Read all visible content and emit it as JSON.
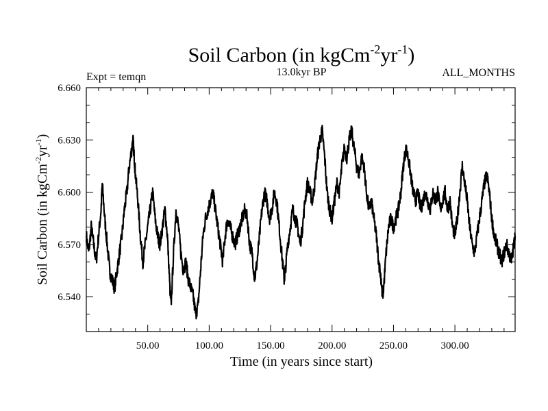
{
  "chart_data": {
    "type": "line",
    "title": "Soil Carbon (in kgCm",
    "title_sup1": "-2",
    "title_mid": "yr",
    "title_sup2": "-1",
    "title_end": ")",
    "subtitle_left": "Expt = temqn",
    "subtitle_center": "13.0kyr BP",
    "subtitle_right": "ALL_MONTHS",
    "xlabel": "Time (in years since start)",
    "ylabel": "Soil Carbon (in kgCm",
    "ylabel_sup1": "-2",
    "ylabel_mid": "yr",
    "ylabel_sup2": "-1",
    "ylabel_end": ")",
    "xlim": [
      0,
      349
    ],
    "ylim": [
      6.52,
      6.66
    ],
    "x_ticks": [
      50,
      100,
      150,
      200,
      250,
      300
    ],
    "x_tick_labels": [
      "50.00",
      "100.00",
      "150.00",
      "200.00",
      "250.00",
      "300.00"
    ],
    "y_ticks": [
      6.54,
      6.57,
      6.6,
      6.63,
      6.66
    ],
    "y_tick_labels": [
      "6.540",
      "6.570",
      "6.600",
      "6.630",
      "6.660"
    ],
    "grid": false,
    "legend": "none",
    "series_color": "#000000",
    "series": [
      {
        "values": [
          [
            0,
            6.575
          ],
          [
            2,
            6.565
          ],
          [
            4,
            6.58
          ],
          [
            6,
            6.57
          ],
          [
            8,
            6.56
          ],
          [
            10,
            6.575
          ],
          [
            12,
            6.59
          ],
          [
            13,
            6.605
          ],
          [
            15,
            6.585
          ],
          [
            17,
            6.57
          ],
          [
            19,
            6.555
          ],
          [
            21,
            6.55
          ],
          [
            23,
            6.545
          ],
          [
            25,
            6.555
          ],
          [
            27,
            6.565
          ],
          [
            29,
            6.575
          ],
          [
            31,
            6.59
          ],
          [
            33,
            6.6
          ],
          [
            35,
            6.615
          ],
          [
            37,
            6.625
          ],
          [
            38,
            6.63
          ],
          [
            39,
            6.62
          ],
          [
            40,
            6.61
          ],
          [
            42,
            6.595
          ],
          [
            44,
            6.575
          ],
          [
            46,
            6.56
          ],
          [
            48,
            6.57
          ],
          [
            50,
            6.58
          ],
          [
            52,
            6.59
          ],
          [
            54,
            6.6
          ],
          [
            56,
            6.585
          ],
          [
            58,
            6.575
          ],
          [
            60,
            6.57
          ],
          [
            62,
            6.58
          ],
          [
            64,
            6.59
          ],
          [
            66,
            6.575
          ],
          [
            68,
            6.545
          ],
          [
            69,
            6.535
          ],
          [
            71,
            6.565
          ],
          [
            73,
            6.59
          ],
          [
            75,
            6.58
          ],
          [
            77,
            6.565
          ],
          [
            79,
            6.555
          ],
          [
            81,
            6.56
          ],
          [
            83,
            6.55
          ],
          [
            85,
            6.545
          ],
          [
            87,
            6.54
          ],
          [
            89,
            6.53
          ],
          [
            91,
            6.535
          ],
          [
            93,
            6.555
          ],
          [
            95,
            6.575
          ],
          [
            97,
            6.585
          ],
          [
            99,
            6.59
          ],
          [
            101,
            6.595
          ],
          [
            103,
            6.6
          ],
          [
            105,
            6.59
          ],
          [
            107,
            6.58
          ],
          [
            109,
            6.57
          ],
          [
            111,
            6.56
          ],
          [
            113,
            6.575
          ],
          [
            115,
            6.585
          ],
          [
            117,
            6.58
          ],
          [
            119,
            6.575
          ],
          [
            121,
            6.57
          ],
          [
            123,
            6.575
          ],
          [
            125,
            6.58
          ],
          [
            127,
            6.585
          ],
          [
            129,
            6.59
          ],
          [
            131,
            6.585
          ],
          [
            133,
            6.57
          ],
          [
            135,
            6.565
          ],
          [
            137,
            6.55
          ],
          [
            139,
            6.56
          ],
          [
            141,
            6.575
          ],
          [
            143,
            6.59
          ],
          [
            145,
            6.6
          ],
          [
            147,
            6.595
          ],
          [
            149,
            6.585
          ],
          [
            151,
            6.59
          ],
          [
            153,
            6.6
          ],
          [
            155,
            6.595
          ],
          [
            157,
            6.58
          ],
          [
            159,
            6.565
          ],
          [
            161,
            6.55
          ],
          [
            162,
            6.555
          ],
          [
            164,
            6.57
          ],
          [
            166,
            6.58
          ],
          [
            168,
            6.59
          ],
          [
            170,
            6.585
          ],
          [
            172,
            6.58
          ],
          [
            174,
            6.57
          ],
          [
            176,
            6.58
          ],
          [
            178,
            6.595
          ],
          [
            180,
            6.605
          ],
          [
            182,
            6.6
          ],
          [
            184,
            6.595
          ],
          [
            186,
            6.605
          ],
          [
            188,
            6.62
          ],
          [
            190,
            6.63
          ],
          [
            192,
            6.635
          ],
          [
            194,
            6.62
          ],
          [
            196,
            6.6
          ],
          [
            198,
            6.59
          ],
          [
            200,
            6.585
          ],
          [
            202,
            6.595
          ],
          [
            204,
            6.605
          ],
          [
            206,
            6.6
          ],
          [
            208,
            6.615
          ],
          [
            210,
            6.625
          ],
          [
            212,
            6.62
          ],
          [
            214,
            6.63
          ],
          [
            216,
            6.635
          ],
          [
            218,
            6.625
          ],
          [
            220,
            6.615
          ],
          [
            222,
            6.61
          ],
          [
            224,
            6.62
          ],
          [
            226,
            6.615
          ],
          [
            228,
            6.6
          ],
          [
            230,
            6.59
          ],
          [
            232,
            6.595
          ],
          [
            234,
            6.585
          ],
          [
            236,
            6.575
          ],
          [
            238,
            6.56
          ],
          [
            240,
            6.55
          ],
          [
            241,
            6.54
          ],
          [
            242,
            6.545
          ],
          [
            244,
            6.565
          ],
          [
            246,
            6.58
          ],
          [
            248,
            6.585
          ],
          [
            250,
            6.58
          ],
          [
            252,
            6.585
          ],
          [
            254,
            6.59
          ],
          [
            256,
            6.6
          ],
          [
            258,
            6.615
          ],
          [
            260,
            6.625
          ],
          [
            262,
            6.62
          ],
          [
            264,
            6.61
          ],
          [
            266,
            6.6
          ],
          [
            268,
            6.595
          ],
          [
            270,
            6.6
          ],
          [
            272,
            6.59
          ],
          [
            274,
            6.595
          ],
          [
            276,
            6.6
          ],
          [
            278,
            6.595
          ],
          [
            280,
            6.59
          ],
          [
            282,
            6.6
          ],
          [
            284,
            6.595
          ],
          [
            286,
            6.6
          ],
          [
            288,
            6.59
          ],
          [
            290,
            6.595
          ],
          [
            292,
            6.6
          ],
          [
            294,
            6.59
          ],
          [
            296,
            6.595
          ],
          [
            298,
            6.58
          ],
          [
            300,
            6.575
          ],
          [
            302,
            6.585
          ],
          [
            304,
            6.6
          ],
          [
            306,
            6.615
          ],
          [
            308,
            6.605
          ],
          [
            310,
            6.595
          ],
          [
            312,
            6.58
          ],
          [
            314,
            6.57
          ],
          [
            316,
            6.565
          ],
          [
            318,
            6.575
          ],
          [
            320,
            6.585
          ],
          [
            322,
            6.595
          ],
          [
            324,
            6.605
          ],
          [
            326,
            6.61
          ],
          [
            328,
            6.6
          ],
          [
            330,
            6.585
          ],
          [
            332,
            6.575
          ],
          [
            334,
            6.57
          ],
          [
            336,
            6.565
          ],
          [
            338,
            6.56
          ],
          [
            340,
            6.565
          ],
          [
            342,
            6.57
          ],
          [
            344,
            6.565
          ],
          [
            346,
            6.56
          ],
          [
            348,
            6.57
          ],
          [
            349,
            6.575
          ]
        ]
      }
    ]
  }
}
